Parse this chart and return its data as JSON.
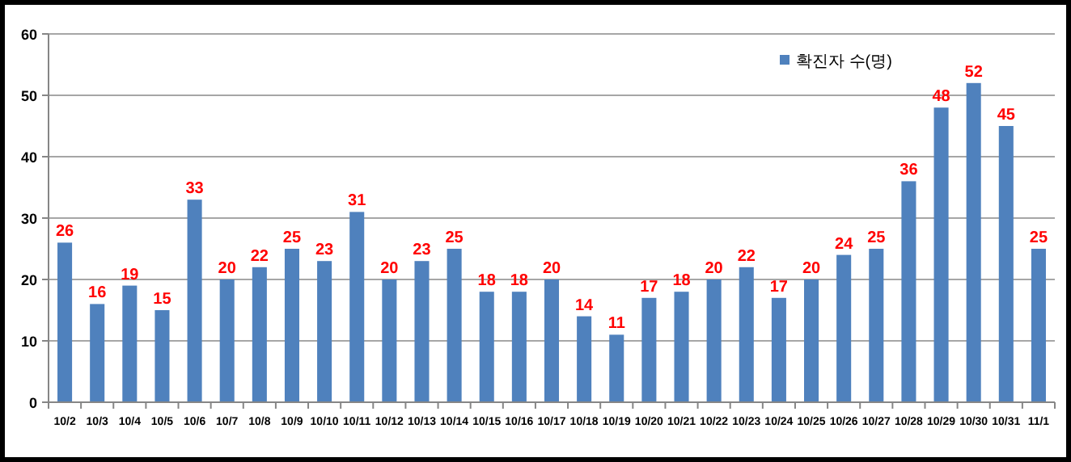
{
  "chart_data": {
    "type": "bar",
    "categories": [
      "10/2",
      "10/3",
      "10/4",
      "10/5",
      "10/6",
      "10/7",
      "10/8",
      "10/9",
      "10/10",
      "10/11",
      "10/12",
      "10/13",
      "10/14",
      "10/15",
      "10/16",
      "10/17",
      "10/18",
      "10/19",
      "10/20",
      "10/21",
      "10/22",
      "10/23",
      "10/24",
      "10/25",
      "10/26",
      "10/27",
      "10/28",
      "10/29",
      "10/30",
      "10/31",
      "11/1"
    ],
    "series": [
      {
        "name": "확진자 수(명)",
        "color": "#4f81bd",
        "values": [
          26,
          16,
          19,
          15,
          33,
          20,
          22,
          25,
          23,
          31,
          20,
          23,
          25,
          18,
          18,
          20,
          14,
          11,
          17,
          18,
          20,
          22,
          17,
          20,
          24,
          25,
          36,
          48,
          52,
          45,
          25
        ]
      }
    ],
    "ylim": [
      0,
      60
    ],
    "yticks": [
      0,
      10,
      20,
      30,
      40,
      50,
      60
    ],
    "grid": "y",
    "legend": "top right",
    "data_labels": true
  }
}
